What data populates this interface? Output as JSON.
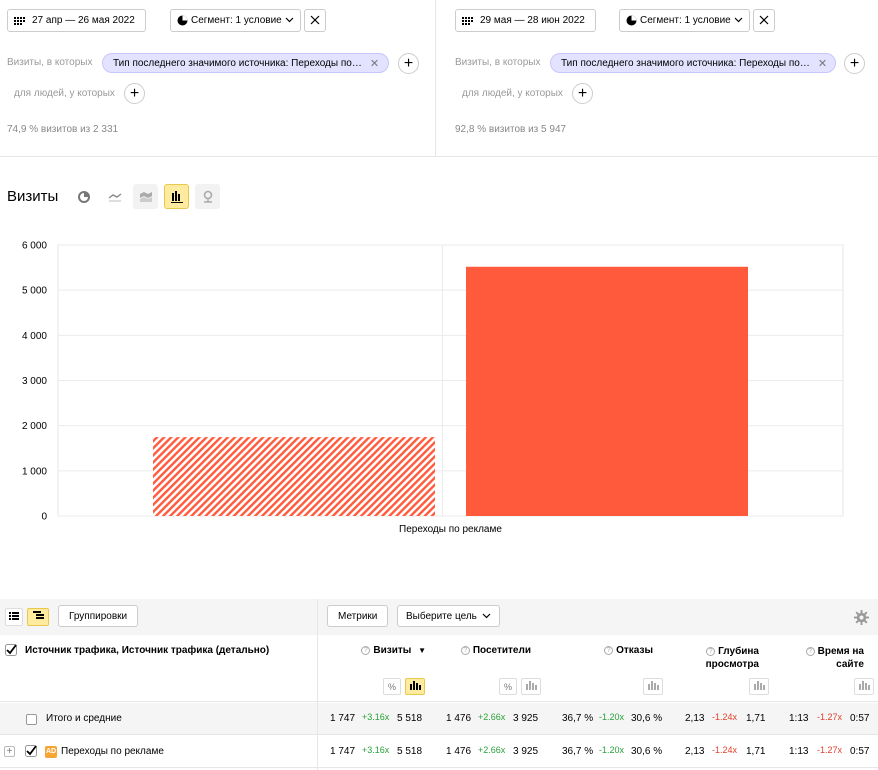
{
  "left_panel": {
    "date_range": "27 апр — 26 мая 2022",
    "segment_label": "Сегмент: 1 условие",
    "visits_where": "Визиты, в которых",
    "filter_chip": "Тип последнего значимого источника: Переходы по…",
    "people_where": "для людей, у которых",
    "share_text": "74,9 % визитов из 2 331"
  },
  "right_panel": {
    "date_range": "29 мая — 28 июн 2022",
    "segment_label": "Сегмент: 1 условие",
    "visits_where": "Визиты, в которых",
    "filter_chip": "Тип последнего значимого источника: Переходы по…",
    "people_where": "для людей, у которых",
    "share_text": "92,8 % визитов из 5 947"
  },
  "chart_header": {
    "title": "Визиты",
    "types": [
      "pie-chart-icon",
      "line-chart-icon",
      "area-chart-icon",
      "bar-chart-icon",
      "map-icon"
    ],
    "active_type": "bar-chart-icon"
  },
  "chart_data": {
    "type": "bar",
    "categories": [
      "Переходы по рекламе"
    ],
    "series": [
      {
        "values": [
          1747
        ],
        "color": "#ff5a3c",
        "pattern": "hatched"
      },
      {
        "values": [
          5518
        ],
        "color": "#ff5a3c",
        "pattern": "solid"
      }
    ],
    "ylim": [
      0,
      6000
    ],
    "yticks": [
      "0",
      "1 000",
      "2 000",
      "3 000",
      "4 000",
      "5 000",
      "6 000"
    ],
    "grid": true
  },
  "table": {
    "toolbar": {
      "groupings_label": "Группировки",
      "metrics_label": "Метрики",
      "goal_label": "Выберите цель"
    },
    "dimension_header": "Источник трафика, Источник трафика (детально)",
    "columns": [
      {
        "label": "Визиты",
        "sort": "▼"
      },
      {
        "label": "Посетители"
      },
      {
        "label": "Отказы"
      },
      {
        "label_line1": "Глубина",
        "label_line2": "просмотра"
      },
      {
        "label_line1": "Время на",
        "label_line2": "сайте"
      }
    ],
    "total_row": {
      "label": "Итого и средние",
      "visits": [
        "1 747",
        "+3.16x",
        "5 518"
      ],
      "users": [
        "1 476",
        "+2.66x",
        "3 925"
      ],
      "bounce": [
        "36,7 %",
        "-1.20x",
        "30,6 %"
      ],
      "depth": [
        "2,13",
        "-1.24x",
        "1,71"
      ],
      "time": [
        "1:13",
        "-1.27x",
        "0:57"
      ]
    },
    "data_row": {
      "badge": "AD",
      "label": "Переходы по рекламе",
      "visits": [
        "1 747",
        "+3.16x",
        "5 518"
      ],
      "users": [
        "1 476",
        "+2.66x",
        "3 925"
      ],
      "bounce": [
        "36,7 %",
        "-1.20x",
        "30,6 %"
      ],
      "depth": [
        "2,13",
        "-1.24x",
        "1,71"
      ],
      "time": [
        "1:13",
        "-1.27x",
        "0:57"
      ]
    }
  }
}
